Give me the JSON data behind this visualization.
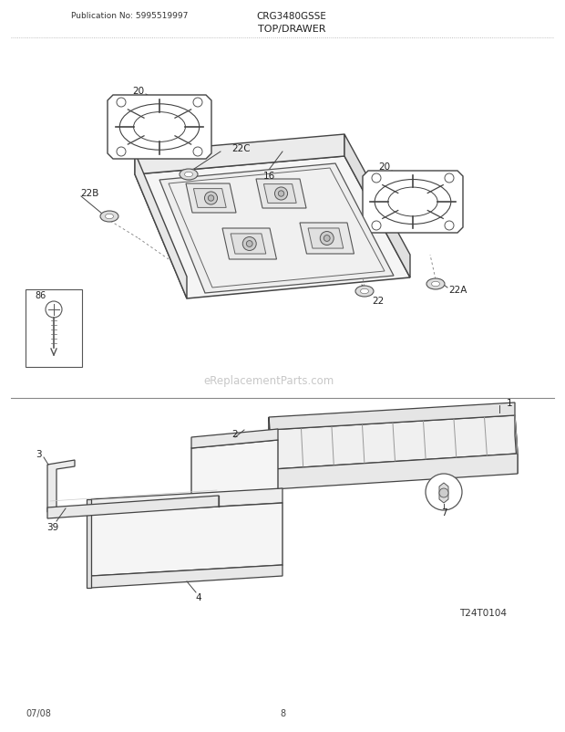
{
  "title": "TOP/DRAWER",
  "pub_no": "Publication No: 5995519997",
  "model": "CRG3480GSSE",
  "date": "07/08",
  "page": "8",
  "watermark": "eReplacementParts.com",
  "diagram_id": "T24T0104",
  "bg_color": "#ffffff",
  "line_color": "#555555"
}
